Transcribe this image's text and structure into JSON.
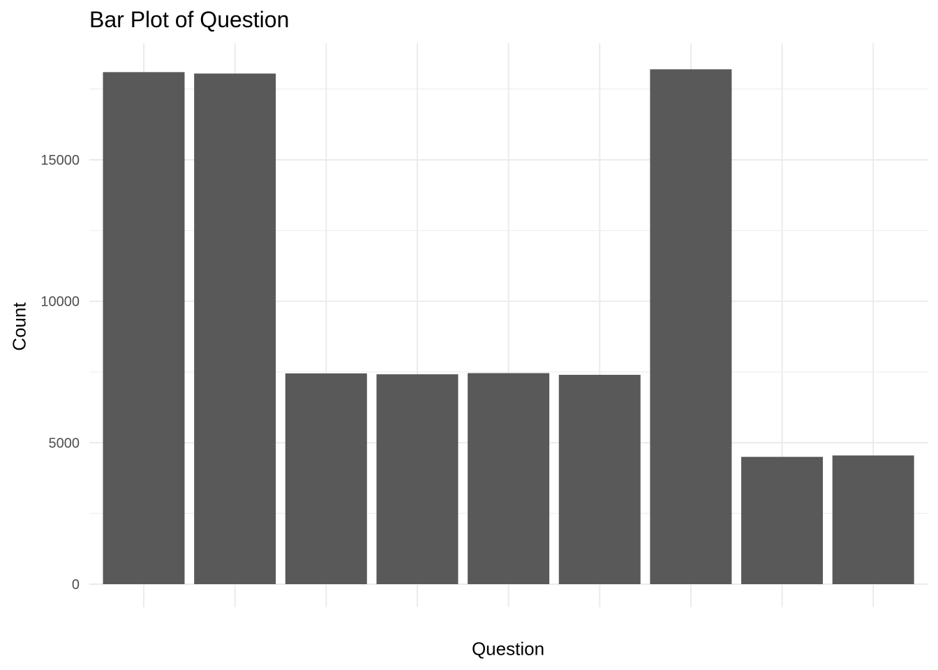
{
  "chart_data": {
    "type": "bar",
    "title": "Bar Plot of Question",
    "xlabel": "Question",
    "ylabel": "Count",
    "ylim": [
      0,
      19200
    ],
    "yticks": [
      0,
      5000,
      10000,
      15000
    ],
    "grid": true,
    "categories": [
      "",
      "",
      "",
      "",
      "",
      "",
      "",
      "",
      ""
    ],
    "values": [
      18100,
      18050,
      7450,
      7420,
      7460,
      7400,
      18200,
      4500,
      4550
    ],
    "bar_color": "#595959",
    "grid_color": "#ebebeb"
  }
}
